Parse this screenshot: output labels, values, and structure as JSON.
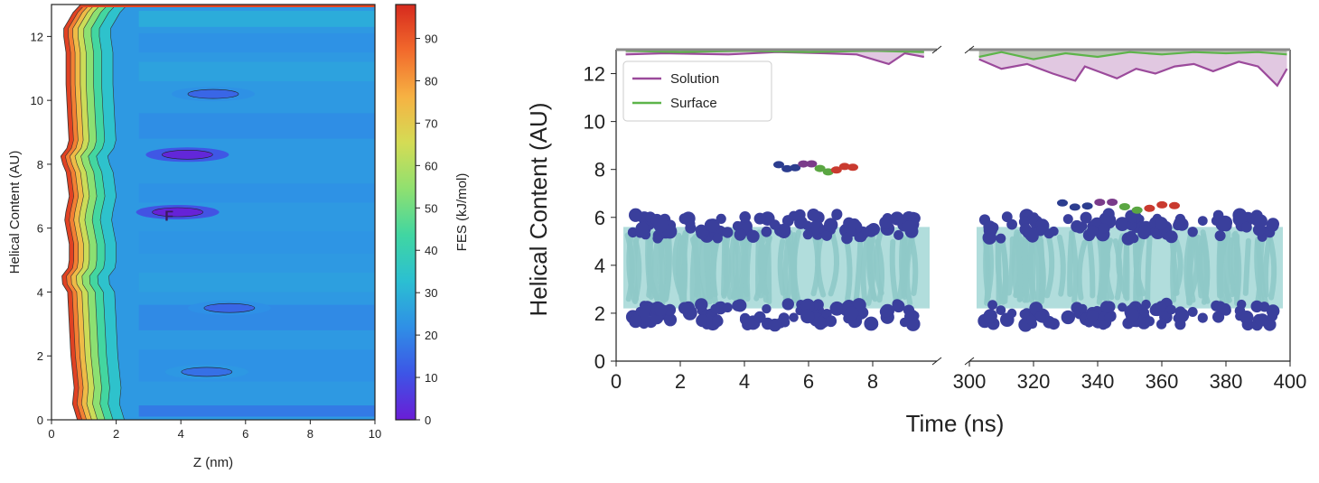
{
  "colors": {
    "solution": "#9b4a9b",
    "surface": "#5db44a",
    "lipid_head": "#3a3f9c",
    "lipid_tail": "#a3d7d6",
    "colormap": [
      "#6a1dd6",
      "#3d55e6",
      "#2f8fe6",
      "#2bbfd2",
      "#40d6a2",
      "#8fe070",
      "#d4dc55",
      "#f6b243",
      "#f26a2c",
      "#d62a1e"
    ]
  },
  "chart_data": [
    {
      "type": "heatmap",
      "title": "",
      "xlabel": "Z (nm)",
      "ylabel": "Helical Content (AU)",
      "xlim": [
        0,
        10
      ],
      "ylim": [
        0,
        13
      ],
      "x_ticks": [
        "0",
        "2",
        "4",
        "6",
        "8",
        "10"
      ],
      "y_ticks": [
        "0",
        "2",
        "4",
        "6",
        "8",
        "10",
        "12"
      ],
      "colorbar": {
        "label": "FES (kJ/mol)",
        "range": [
          0,
          98
        ],
        "ticks": [
          "0",
          "10",
          "20",
          "30",
          "40",
          "50",
          "60",
          "70",
          "80",
          "90"
        ]
      },
      "annotations": [
        {
          "text": "F",
          "x": 3.5,
          "y": 6.4
        }
      ],
      "minima": [
        {
          "z": 4.2,
          "h": 8.3,
          "fes": 2
        },
        {
          "z": 3.9,
          "h": 6.5,
          "fes": 1
        },
        {
          "z": 5.0,
          "h": 10.2,
          "fes": 14
        },
        {
          "z": 5.5,
          "h": 3.5,
          "fes": 14
        },
        {
          "z": 4.8,
          "h": 1.5,
          "fes": 16
        }
      ],
      "wall_profile": {
        "h": [
          0,
          0.5,
          1,
          2,
          3,
          4,
          4.4,
          4.8,
          5.5,
          6.3,
          7,
          7.8,
          8.2,
          8.6,
          9.5,
          10.5,
          11.5,
          12.2,
          12.8,
          13
        ],
        "z_start": [
          0.8,
          0.65,
          0.7,
          0.6,
          0.55,
          0.5,
          0.25,
          0.55,
          0.55,
          0.4,
          0.55,
          0.45,
          0.25,
          0.55,
          0.5,
          0.45,
          0.45,
          0.35,
          0.7,
          0.9
        ]
      }
    },
    {
      "type": "line",
      "title": "",
      "xlabel": "Time (ns)",
      "ylabel": "Helical Content (AU)",
      "ylim": [
        0,
        13
      ],
      "y_ticks": [
        "0",
        "2",
        "4",
        "6",
        "8",
        "10",
        "12"
      ],
      "broken_x_axis": [
        {
          "xlim": [
            0,
            10
          ],
          "ticks": [
            "0",
            "2",
            "4",
            "6",
            "8"
          ]
        },
        {
          "xlim": [
            300,
            400
          ],
          "ticks": [
            "300",
            "320",
            "340",
            "360",
            "380",
            "400"
          ]
        }
      ],
      "legend": {
        "position": "top-left"
      },
      "series": [
        {
          "name": "Solution",
          "segments": [
            {
              "x": [
                0.3,
                1.5,
                3.5,
                5.0,
                6.5,
                7.5,
                8.5,
                9.0,
                9.6
              ],
              "y": [
                12.8,
                12.85,
                12.8,
                12.9,
                12.85,
                12.8,
                12.4,
                12.85,
                12.7
              ]
            },
            {
              "x": [
                303,
                310,
                318,
                326,
                333,
                336,
                340,
                346,
                352,
                358,
                364,
                370,
                376,
                384,
                390,
                396,
                399
              ],
              "y": [
                12.6,
                12.2,
                12.4,
                12.0,
                11.7,
                12.3,
                12.1,
                11.8,
                12.2,
                12.0,
                12.3,
                12.4,
                12.1,
                12.5,
                12.3,
                11.5,
                12.2
              ]
            }
          ]
        },
        {
          "name": "Surface",
          "segments": [
            {
              "x": [
                0.3,
                2.0,
                4.0,
                6.0,
                8.0,
                9.6
              ],
              "y": [
                12.95,
                12.9,
                12.95,
                12.9,
                12.95,
                12.9
              ]
            },
            {
              "x": [
                303,
                310,
                320,
                330,
                340,
                350,
                360,
                370,
                380,
                390,
                399
              ],
              "y": [
                12.7,
                12.9,
                12.6,
                12.85,
                12.7,
                12.9,
                12.8,
                12.9,
                12.85,
                12.9,
                12.8
              ]
            }
          ]
        }
      ]
    }
  ]
}
